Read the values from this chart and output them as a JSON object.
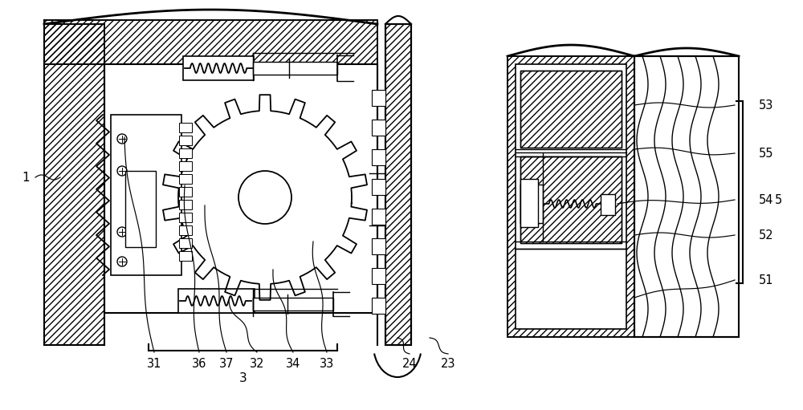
{
  "bg_color": "#ffffff",
  "line_color": "#000000",
  "figsize": [
    10.0,
    5.11
  ],
  "dpi": 100
}
